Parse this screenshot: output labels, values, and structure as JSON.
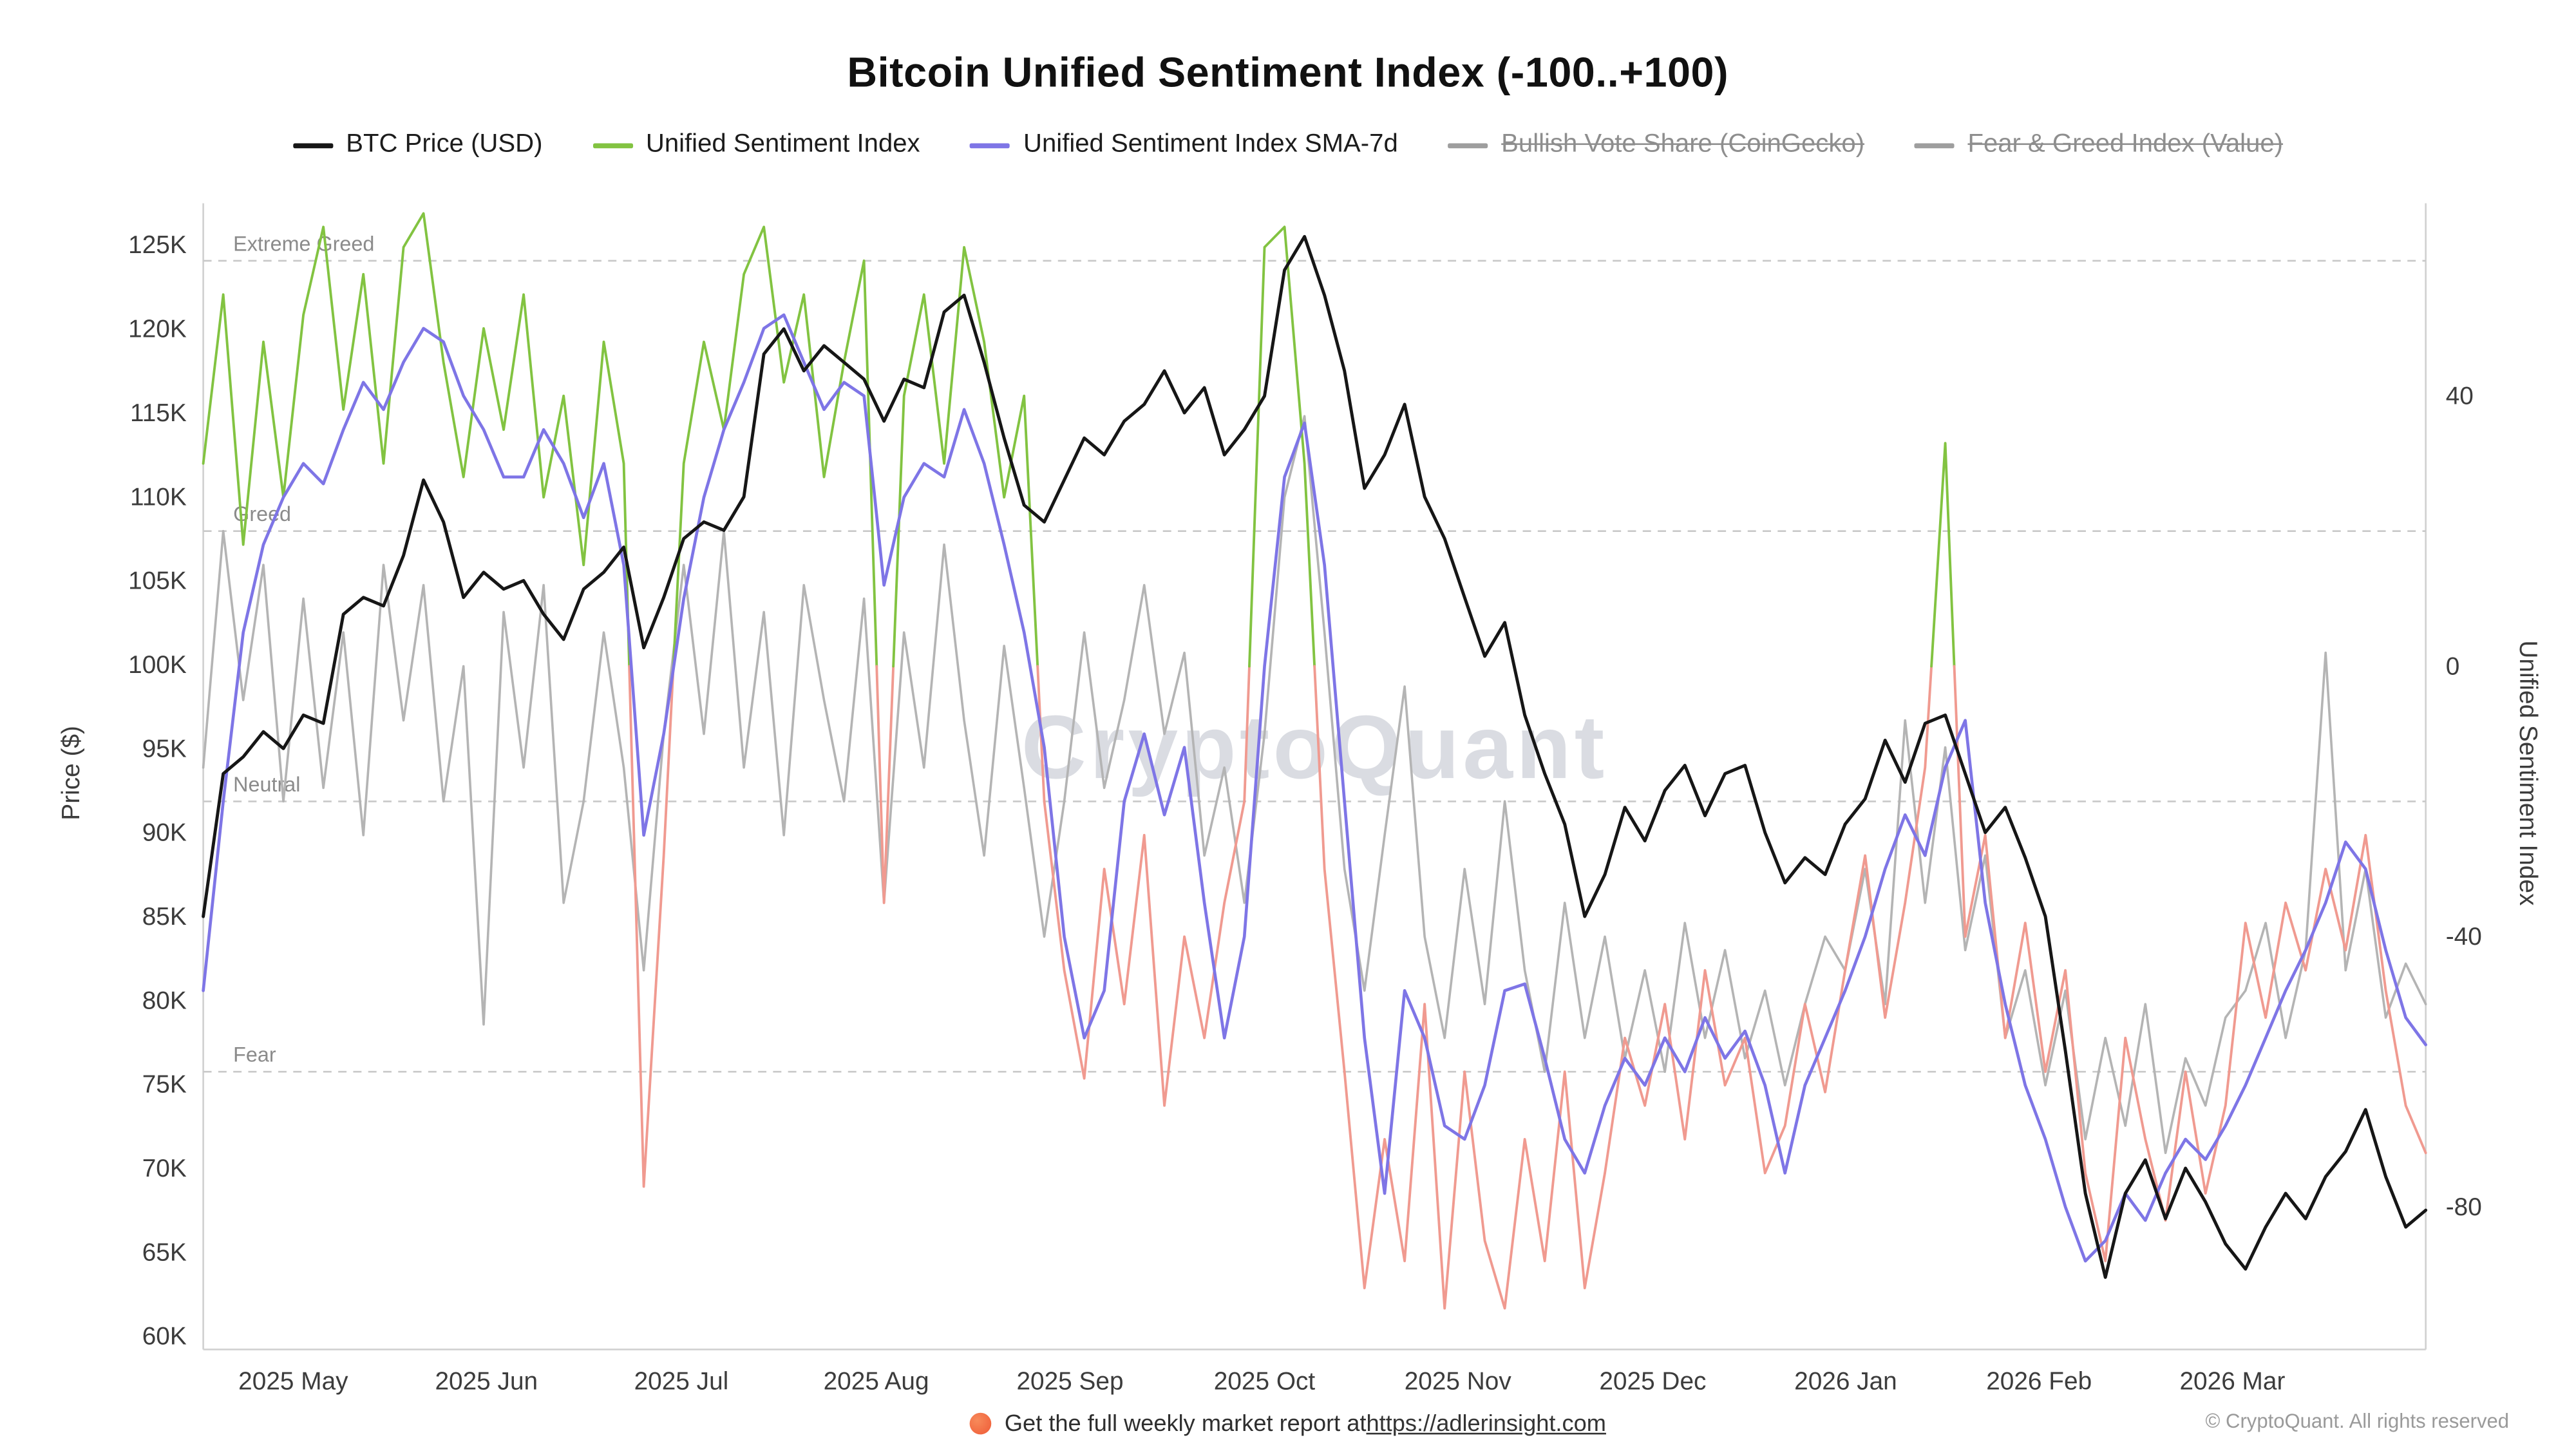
{
  "title": "Bitcoin Unified Sentiment Index (-100..+100)",
  "watermark": "CryptoQuant",
  "legend": [
    {
      "label": "BTC Price (USD)",
      "color": "#161616",
      "struck": false
    },
    {
      "label": "Unified Sentiment Index",
      "color": "#82c341",
      "struck": false
    },
    {
      "label": "Unified Sentiment Index SMA-7d",
      "color": "#7e75e6",
      "struck": false
    },
    {
      "label": "Bullish Vote Share (CoinGecko)",
      "color": "#9e9e9e",
      "struck": true
    },
    {
      "label": "Fear & Greed Index (Value)",
      "color": "#9e9e9e",
      "struck": true
    }
  ],
  "footer": {
    "report_text": "Get the full weekly market report at ",
    "report_link": "https://adlerinsight.com",
    "copyright": "© CryptoQuant. All rights reserved"
  },
  "chart_data": {
    "type": "line",
    "title": "Bitcoin Unified Sentiment Index (-100..+100)",
    "left_axis_label": "Price ($)",
    "right_axis_label": "Unified Sentiment Index",
    "price_axis_range_k": [
      59.2,
      127.5
    ],
    "sentiment_axis_range": [
      -101,
      68
    ],
    "grid": "dashed-thresholds-only",
    "legend_position": "top",
    "price_ticks": [
      {
        "label": "60K",
        "value": 60
      },
      {
        "label": "65K",
        "value": 65
      },
      {
        "label": "70K",
        "value": 70
      },
      {
        "label": "75K",
        "value": 75
      },
      {
        "label": "80K",
        "value": 80
      },
      {
        "label": "85K",
        "value": 85
      },
      {
        "label": "90K",
        "value": 90
      },
      {
        "label": "95K",
        "value": 95
      },
      {
        "label": "100K",
        "value": 100
      },
      {
        "label": "105K",
        "value": 105
      },
      {
        "label": "110K",
        "value": 110
      },
      {
        "label": "115K",
        "value": 115
      },
      {
        "label": "120K",
        "value": 120
      },
      {
        "label": "125K",
        "value": 125
      }
    ],
    "sentiment_ticks": [
      {
        "label": "40",
        "value": 40
      },
      {
        "label": "0",
        "value": 0
      },
      {
        "label": "-40",
        "value": -40
      },
      {
        "label": "-80",
        "value": -80
      }
    ],
    "thresholds": [
      {
        "label": "Extreme Greed",
        "value": 60
      },
      {
        "label": "Greed",
        "value": 20
      },
      {
        "label": "Neutral",
        "value": -20
      },
      {
        "label": "Fear",
        "value": -60
      }
    ],
    "x_ticks": [
      {
        "label": "2025 May",
        "f": 0.0405
      },
      {
        "label": "2025 Jun",
        "f": 0.1274
      },
      {
        "label": "2025 Jul",
        "f": 0.2151
      },
      {
        "label": "2025 Aug",
        "f": 0.3028
      },
      {
        "label": "2025 Sep",
        "f": 0.39
      },
      {
        "label": "2025 Oct",
        "f": 0.4775
      },
      {
        "label": "2025 Nov",
        "f": 0.5645
      },
      {
        "label": "2025 Dec",
        "f": 0.6522
      },
      {
        "label": "2026 Jan",
        "f": 0.739
      },
      {
        "label": "2026 Feb",
        "f": 0.826
      },
      {
        "label": "2026 Mar",
        "f": 0.913
      }
    ],
    "series": [
      {
        "name": "BTC Price (USD)",
        "axis": "price",
        "color": "#161616",
        "width": 1.9,
        "values": [
          85,
          93.5,
          94.5,
          96,
          95,
          97,
          96.5,
          103,
          104,
          103.5,
          106.5,
          111,
          108.5,
          104,
          105.5,
          104.5,
          105,
          103,
          101.5,
          104.5,
          105.5,
          107,
          101,
          104,
          107.5,
          108.5,
          108,
          110,
          118.5,
          120,
          117.5,
          119,
          118,
          117,
          114.5,
          117,
          116.5,
          121,
          122,
          118,
          113.5,
          109.5,
          108.5,
          111,
          113.5,
          112.5,
          114.5,
          115.5,
          117.5,
          115,
          116.5,
          112.5,
          114,
          116,
          123.5,
          125.5,
          122,
          117.5,
          110.5,
          112.5,
          115.5,
          110,
          107.5,
          104,
          100.5,
          102.5,
          97,
          93.5,
          90.5,
          85,
          87.5,
          91.5,
          89.5,
          92.5,
          94,
          91,
          93.5,
          94,
          90,
          87,
          88.5,
          87.5,
          90.5,
          92,
          95.5,
          93,
          96.5,
          97,
          93.5,
          90,
          91.5,
          88.5,
          85,
          77,
          68.5,
          63.5,
          68.5,
          70.5,
          67,
          70,
          68,
          65.5,
          64,
          66.5,
          68.5,
          67,
          69.5,
          71,
          73.5,
          69.5,
          66.5,
          67.5
        ]
      },
      {
        "name": "Unified Sentiment Index",
        "axis": "sentiment",
        "color_positive": "#82c341",
        "color_negative": "#f09a90",
        "width": 1.5,
        "values": [
          30,
          55,
          18,
          48,
          25,
          52,
          65,
          38,
          58,
          30,
          62,
          67,
          45,
          28,
          50,
          35,
          55,
          25,
          40,
          15,
          48,
          30,
          -77,
          -28,
          30,
          48,
          35,
          58,
          65,
          42,
          55,
          28,
          45,
          60,
          -35,
          40,
          55,
          30,
          62,
          48,
          25,
          40,
          -20,
          -45,
          -61,
          -30,
          -50,
          -25,
          -65,
          -40,
          -55,
          -35,
          -20,
          62,
          65,
          30,
          -30,
          -60,
          -92,
          -70,
          -88,
          -50,
          -95,
          -60,
          -85,
          -95,
          -70,
          -88,
          -60,
          -92,
          -75,
          -55,
          -65,
          -50,
          -70,
          -45,
          -62,
          -55,
          -75,
          -68,
          -50,
          -63,
          -45,
          -28,
          -52,
          -35,
          -15,
          33,
          -40,
          -25,
          -55,
          -38,
          -60,
          -45,
          -75,
          -88,
          -55,
          -70,
          -82,
          -60,
          -78,
          -65,
          -38,
          -52,
          -35,
          -45,
          -30,
          -42,
          -25,
          -48,
          -65,
          -72
        ]
      },
      {
        "name": "Unified Sentiment Index SMA-7d",
        "axis": "sentiment",
        "color": "#7e75e6",
        "width": 1.8,
        "values": [
          -48,
          -20,
          5,
          18,
          25,
          30,
          27,
          35,
          42,
          38,
          45,
          50,
          48,
          40,
          35,
          28,
          28,
          35,
          30,
          22,
          30,
          15,
          -25,
          -10,
          10,
          25,
          35,
          42,
          50,
          52,
          45,
          38,
          42,
          40,
          12,
          25,
          30,
          28,
          38,
          30,
          18,
          5,
          -12,
          -40,
          -55,
          -48,
          -20,
          -10,
          -22,
          -12,
          -35,
          -55,
          -40,
          0,
          28,
          36,
          15,
          -20,
          -55,
          -78,
          -48,
          -55,
          -68,
          -70,
          -62,
          -48,
          -47,
          -58,
          -70,
          -75,
          -65,
          -58,
          -62,
          -55,
          -60,
          -52,
          -58,
          -54,
          -62,
          -75,
          -62,
          -55,
          -48,
          -40,
          -30,
          -22,
          -28,
          -15,
          -8,
          -35,
          -50,
          -62,
          -70,
          -80,
          -88,
          -85,
          -78,
          -82,
          -75,
          -70,
          -73,
          -68,
          -62,
          -55,
          -48,
          -42,
          -35,
          -26,
          -30,
          -42,
          -52,
          -56
        ]
      },
      {
        "name": "Bullish Vote Share (CoinGecko)",
        "axis": "sentiment",
        "color": "#b4b4b4",
        "width": 1.4,
        "values": [
          -15,
          20,
          -5,
          15,
          -20,
          10,
          -18,
          5,
          -25,
          15,
          -8,
          12,
          -20,
          0,
          -53,
          8,
          -15,
          12,
          -35,
          -20,
          5,
          -15,
          -45,
          -10,
          15,
          -10,
          20,
          -15,
          8,
          -25,
          12,
          -5,
          -20,
          10,
          -35,
          5,
          -15,
          18,
          -8,
          -28,
          3,
          -18,
          -40,
          -20,
          5,
          -18,
          -5,
          12,
          -10,
          2,
          -28,
          -15,
          -35,
          -10,
          25,
          37,
          5,
          -30,
          -48,
          -25,
          -3,
          -40,
          -55,
          -30,
          -50,
          -20,
          -45,
          -60,
          -35,
          -55,
          -40,
          -58,
          -45,
          -60,
          -38,
          -55,
          -42,
          -58,
          -48,
          -62,
          -50,
          -40,
          -45,
          -30,
          -50,
          -8,
          -35,
          -12,
          -42,
          -28,
          -55,
          -45,
          -62,
          -48,
          -70,
          -55,
          -68,
          -50,
          -72,
          -58,
          -65,
          -52,
          -48,
          -38,
          -55,
          -42,
          2,
          -45,
          -30,
          -52,
          -44,
          -50
        ]
      }
    ]
  }
}
